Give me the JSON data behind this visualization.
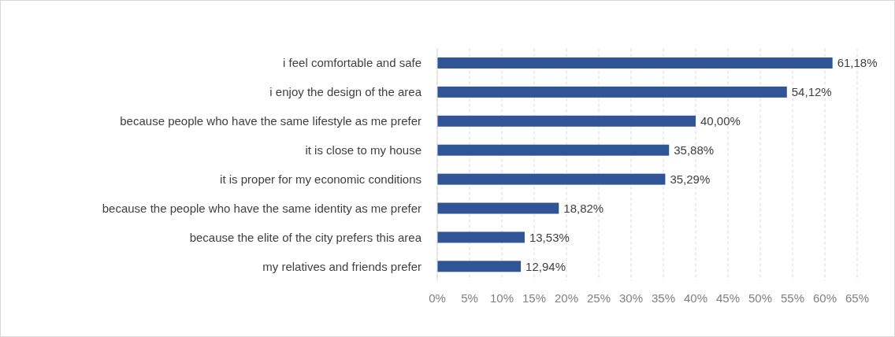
{
  "chart_data": {
    "type": "bar",
    "orientation": "horizontal",
    "categories": [
      "i feel comfortable and safe",
      "i enjoy the design of the area",
      "because people who have the same lifestyle as me prefer",
      "it is close to my house",
      "it is proper for my economic conditions",
      "because the people who have the same identity as me prefer",
      "because the elite of the city prefers this area",
      "my relatives and friends prefer"
    ],
    "values": [
      61.18,
      54.12,
      40.0,
      35.88,
      35.29,
      18.82,
      13.53,
      12.94
    ],
    "value_labels": [
      "61,18%",
      "54,12%",
      "40,00%",
      "35,88%",
      "35,29%",
      "18,82%",
      "13,53%",
      "12,94%"
    ],
    "color": "#2f5597",
    "xlim": [
      0,
      65
    ],
    "xticks": [
      {
        "value": 0,
        "label": "0%"
      },
      {
        "value": 5,
        "label": "5%"
      },
      {
        "value": 10,
        "label": "10%"
      },
      {
        "value": 15,
        "label": "15%"
      },
      {
        "value": 20,
        "label": "20%"
      },
      {
        "value": 25,
        "label": "25%"
      },
      {
        "value": 30,
        "label": "30%"
      },
      {
        "value": 35,
        "label": "35%"
      },
      {
        "value": 40,
        "label": "40%"
      },
      {
        "value": 45,
        "label": "45%"
      },
      {
        "value": 50,
        "label": "50%"
      },
      {
        "value": 55,
        "label": "55%"
      },
      {
        "value": 60,
        "label": "60%"
      },
      {
        "value": 65,
        "label": "65%"
      }
    ],
    "grid": "x"
  }
}
